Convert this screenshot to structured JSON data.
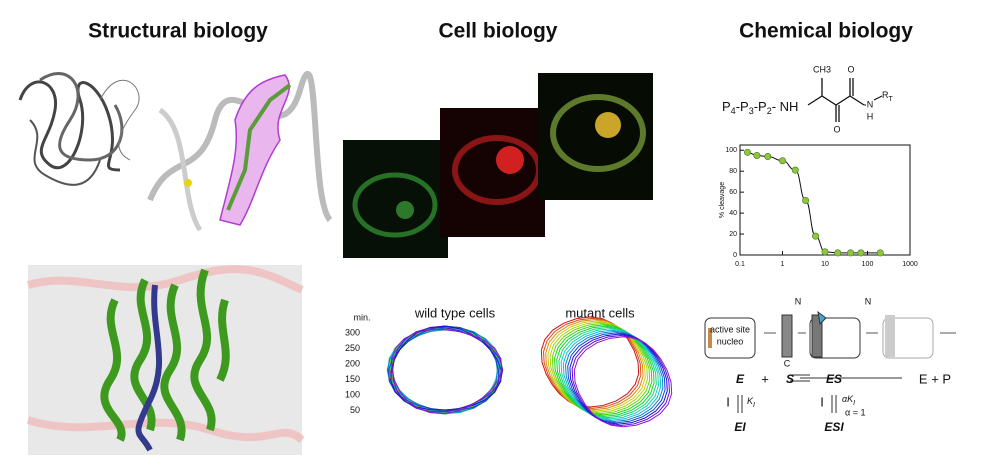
{
  "columns": [
    {
      "title": "Structural biology"
    },
    {
      "title": "Cell biology",
      "time_label": "min.",
      "time_ticks": [
        300,
        250,
        200,
        150,
        100,
        50
      ],
      "panel_labels": [
        "wild type cells",
        "mutant cells"
      ]
    },
    {
      "title": "Chemical biology",
      "formula": {
        "chain": [
          "P",
          "4",
          "-P",
          "3",
          "-P",
          "2",
          "- NH"
        ],
        "methyl": "CH3",
        "oxo1": "O",
        "oxo2": "O",
        "amine": "N",
        "hydrogen": "H",
        "rgroup": [
          "R",
          "T"
        ]
      },
      "chart_data": {
        "type": "scatter",
        "y_label": "% cleavage",
        "x": [
          0.15,
          0.25,
          0.45,
          1.0,
          2.0,
          3.5,
          6,
          10,
          20,
          40,
          70,
          200
        ],
        "values": [
          98,
          95,
          94,
          90,
          81,
          52,
          18,
          3,
          2,
          2,
          2,
          2
        ],
        "color": "#8dc63f",
        "log_x": true,
        "xlim": [
          0.1,
          1000
        ],
        "xticks": [
          0.1,
          1,
          10,
          100,
          1000
        ],
        "ylim": [
          0,
          105
        ],
        "yticks": [
          0,
          20,
          40,
          60,
          80,
          100
        ]
      },
      "scheme": {
        "E": "E",
        "plus": "+",
        "S": "S",
        "ES": "ES",
        "EP": "E + P",
        "I1": "I",
        "K": [
          "K",
          "I"
        ],
        "EI": "EI",
        "I2": "I",
        "aK": [
          "αK",
          "I"
        ],
        "alpha": "α = 1",
        "ESI": "ESI",
        "site": "active site",
        "nucleophile": "nucleo",
        "N1": "N",
        "C1": "C",
        "N2": "N"
      }
    }
  ]
}
